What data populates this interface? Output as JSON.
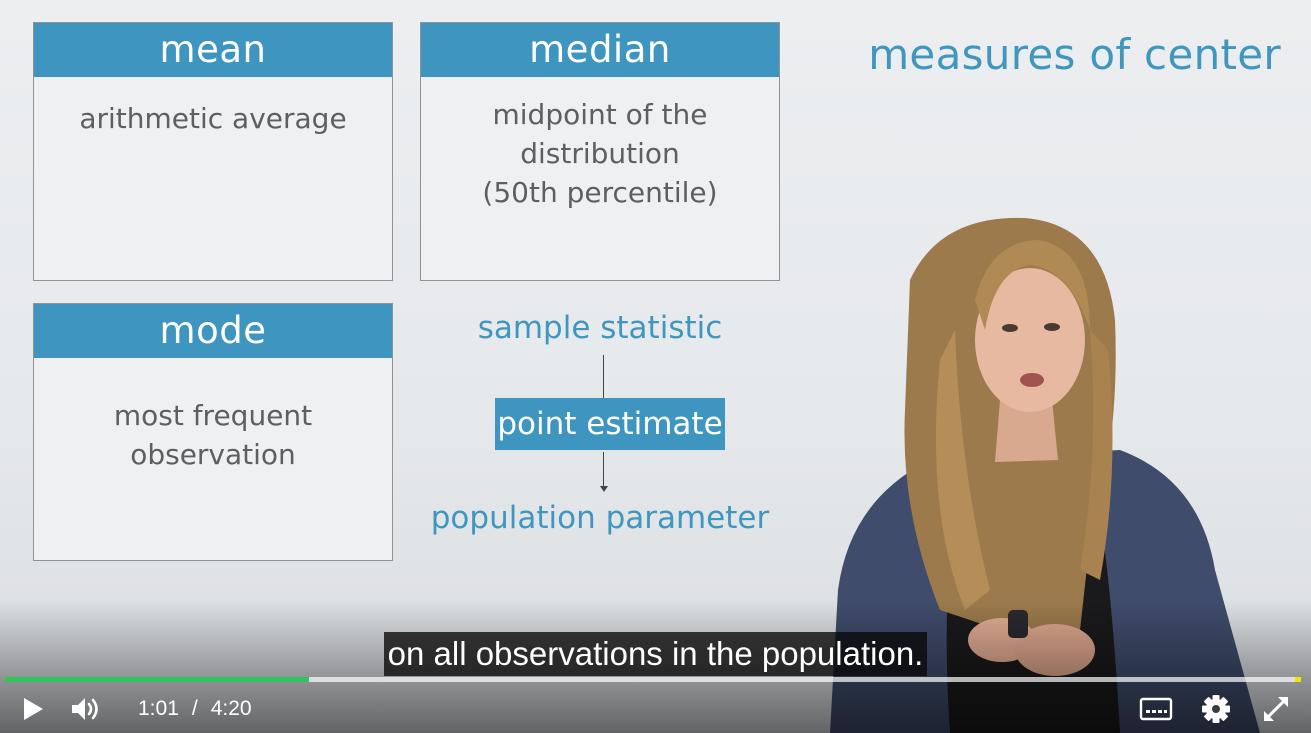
{
  "slide": {
    "title": "measures of center",
    "cards": {
      "mean": {
        "header": "mean",
        "body": "arithmetic average"
      },
      "median": {
        "header": "median",
        "body": "midpoint of the\ndistribution\n(50th percentile)"
      },
      "mode": {
        "header": "mode",
        "body": "most frequent\nobservation"
      }
    },
    "flow": {
      "top": "sample statistic",
      "middle": "point estimate",
      "bottom": "population parameter"
    }
  },
  "caption": "on all observations in the population.",
  "player": {
    "current_time": "1:01",
    "separator": "/",
    "duration": "4:20",
    "progress_fraction": 0.235,
    "buffered_fraction": 1.0,
    "colors": {
      "played": "#2fc55a",
      "accent": "#3e95bf",
      "end_marker": "#f4e400"
    },
    "icons": [
      "play-icon",
      "volume-icon",
      "captions-icon",
      "gear-icon",
      "fullscreen-icon"
    ]
  }
}
